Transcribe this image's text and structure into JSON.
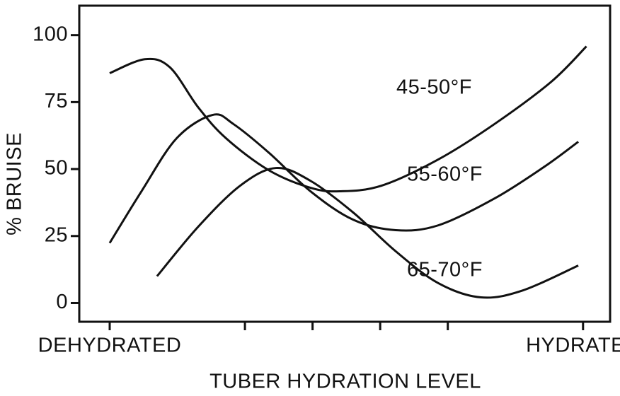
{
  "chart_data": {
    "type": "line",
    "xlabel": "TUBER HYDRATION LEVEL",
    "ylabel": "% BRUISE",
    "xlim": [
      -0.45,
      7.4
    ],
    "ylim": [
      -7,
      111
    ],
    "xticks": [
      {
        "value": 0,
        "label": "DEHYDRATED"
      },
      {
        "value": 7,
        "label": "HYDRATED"
      }
    ],
    "minor_xticks": [
      2,
      3,
      4,
      5
    ],
    "yticks": [
      0,
      25,
      50,
      75,
      100
    ],
    "color": "#111111",
    "series": [
      {
        "name": "45-50°F",
        "x": [
          0,
          0.52,
          0.89,
          1.31,
          1.72,
          2.35,
          2.97,
          3.4,
          4.02,
          4.86,
          5.69,
          6.53,
          7.05
        ],
        "values": [
          85.8,
          91,
          88,
          73,
          61.5,
          49.6,
          43,
          41.7,
          43.8,
          53.6,
          66.8,
          82.6,
          95.8
        ]
      },
      {
        "name": "55-60°F",
        "x": [
          0,
          0.47,
          0.99,
          1.52,
          1.83,
          2.35,
          2.97,
          3.6,
          4.23,
          4.86,
          5.69,
          6.43,
          6.93
        ],
        "values": [
          22.4,
          41.7,
          61.5,
          70.2,
          66.8,
          56.2,
          41.7,
          31.1,
          27.2,
          29,
          39,
          50.9,
          60.2
        ]
      },
      {
        "name": "65-70°F",
        "x": [
          0.7,
          1.31,
          1.93,
          2.46,
          2.97,
          3.6,
          4.23,
          4.86,
          5.49,
          6.11,
          6.93
        ],
        "values": [
          10,
          28.5,
          43.8,
          50.4,
          45.6,
          33.8,
          19.3,
          7.4,
          2.1,
          4.7,
          14
        ]
      }
    ]
  }
}
